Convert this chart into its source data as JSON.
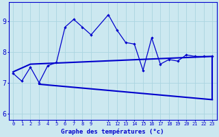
{
  "xlabel": "Graphe des températures (°c)",
  "bg_color": "#cce8f0",
  "grid_color": "#aad4e0",
  "line_color": "#0000cc",
  "ylim": [
    5.8,
    9.6
  ],
  "xlim": [
    -0.5,
    23.5
  ],
  "yticks": [
    6,
    7,
    8,
    9
  ],
  "xticks": [
    0,
    1,
    2,
    3,
    4,
    5,
    6,
    7,
    8,
    9,
    11,
    12,
    13,
    14,
    15,
    16,
    17,
    18,
    19,
    20,
    21,
    22,
    23
  ],
  "main_data": {
    "x": [
      0,
      1,
      2,
      3,
      4,
      5,
      6,
      7,
      8,
      9,
      11,
      12,
      13,
      14,
      15,
      16,
      17,
      18,
      19,
      20,
      21,
      22,
      23
    ],
    "y": [
      7.3,
      7.05,
      7.5,
      7.0,
      7.55,
      7.65,
      8.8,
      9.05,
      8.8,
      8.55,
      9.2,
      8.7,
      8.3,
      8.25,
      7.4,
      8.45,
      7.6,
      7.75,
      7.7,
      7.9,
      7.85,
      7.85,
      7.85
    ]
  },
  "upper_line": {
    "x": [
      0,
      2,
      23
    ],
    "y": [
      7.35,
      7.6,
      7.85
    ]
  },
  "lower_line": {
    "x": [
      3,
      23
    ],
    "y": [
      6.95,
      6.45
    ]
  },
  "vertical_close_x": 23,
  "figsize": [
    3.2,
    2.0
  ],
  "dpi": 100
}
